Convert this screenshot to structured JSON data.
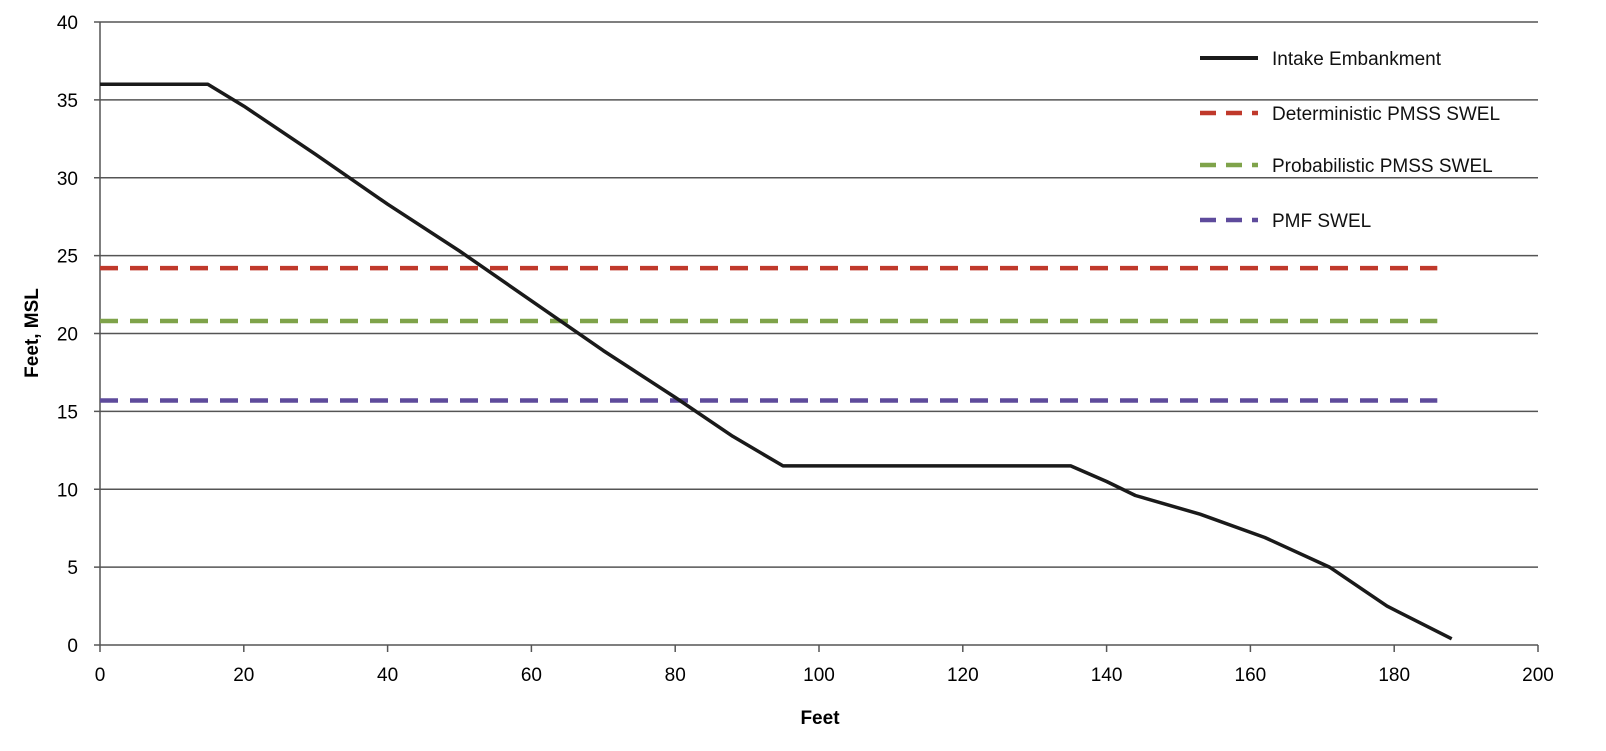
{
  "chart_data": {
    "type": "line",
    "title": "",
    "xlabel": "Feet",
    "ylabel": "Feet, MSL",
    "xlim": [
      0,
      200
    ],
    "ylim": [
      0,
      40
    ],
    "xticks": [
      0,
      20,
      40,
      60,
      80,
      100,
      120,
      140,
      160,
      180,
      200
    ],
    "yticks": [
      0,
      5,
      10,
      15,
      20,
      25,
      30,
      35,
      40
    ],
    "grid": "horizontal",
    "legend_position": "top-right",
    "series": [
      {
        "name": "Intake Embankment",
        "color": "#1a1a1a",
        "style": "solid",
        "x": [
          0,
          15,
          20,
          30,
          40,
          50,
          60,
          70,
          80,
          88,
          95,
          100,
          110,
          120,
          130,
          135,
          140,
          144,
          153,
          162,
          171,
          179,
          188
        ],
        "y": [
          36,
          36,
          34.6,
          31.5,
          28.3,
          25.3,
          22.1,
          18.9,
          15.9,
          13.4,
          11.5,
          11.5,
          11.5,
          11.5,
          11.5,
          11.5,
          10.5,
          9.6,
          8.4,
          6.9,
          5.0,
          2.5,
          0.4
        ]
      },
      {
        "name": "Deterministic PMSS SWEL",
        "color": "#c0392b",
        "style": "dashed",
        "x": [
          0,
          186
        ],
        "y": [
          24.2,
          24.2
        ]
      },
      {
        "name": "Probabilistic PMSS SWEL",
        "color": "#7fa34a",
        "style": "dashed",
        "x": [
          0,
          186
        ],
        "y": [
          20.8,
          20.8
        ]
      },
      {
        "name": "PMF SWEL",
        "color": "#5e4b9c",
        "style": "dashed",
        "x": [
          0,
          186
        ],
        "y": [
          15.7,
          15.7
        ]
      }
    ]
  }
}
